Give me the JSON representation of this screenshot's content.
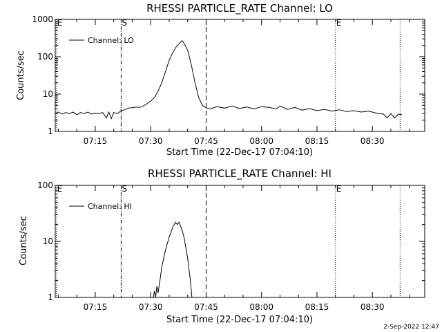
{
  "footer": {
    "timestamp": "2-Sep-2022 12:47"
  },
  "chart_data": [
    {
      "type": "line",
      "title": "RHESSI PARTICLE_RATE Channel: LO",
      "xlabel": "Start Time (22-Dec-17 07:04:10)",
      "ylabel": "Counts/sec",
      "y_scale": "log",
      "ylim": [
        1,
        1000
      ],
      "xlim": [
        "07:04:10",
        "08:44:10"
      ],
      "x_ticks": [
        "07:15",
        "07:30",
        "07:45",
        "08:00",
        "08:15",
        "08:30"
      ],
      "y_ticks": [
        "1",
        "10",
        "100",
        "1000"
      ],
      "legend": {
        "placement": "top-left",
        "entries": [
          "Channel: LO"
        ]
      },
      "markers": [
        {
          "label": "E",
          "time": "07:04:30",
          "style": "dotted"
        },
        {
          "label": "S",
          "time": "07:22:00",
          "style": "dash-dot"
        },
        {
          "label": "",
          "time": "07:45:00",
          "style": "dashed"
        },
        {
          "label": "E",
          "time": "08:20:00",
          "style": "dotted"
        },
        {
          "label": "",
          "time": "08:37:30",
          "style": "dotted"
        }
      ],
      "series": [
        {
          "name": "Channel: LO",
          "points": [
            [
              "07:04:10",
              3
            ],
            [
              "07:05:00",
              3.3
            ],
            [
              "07:06:00",
              2.9
            ],
            [
              "07:07:00",
              3.2
            ],
            [
              "07:08:00",
              3
            ],
            [
              "07:09:00",
              3.3
            ],
            [
              "07:10:00",
              2.8
            ],
            [
              "07:11:00",
              3.2
            ],
            [
              "07:12:00",
              3
            ],
            [
              "07:13:00",
              3.3
            ],
            [
              "07:14:00",
              2.9
            ],
            [
              "07:15:00",
              3.1
            ],
            [
              "07:16:00",
              3
            ],
            [
              "07:17:00",
              3.2
            ],
            [
              "07:18:00",
              2.3
            ],
            [
              "07:18:40",
              3.3
            ],
            [
              "07:19:20",
              2.2
            ],
            [
              "07:20:00",
              3.2
            ],
            [
              "07:21:00",
              3
            ],
            [
              "07:22:00",
              3.6
            ],
            [
              "07:23:00",
              3.8
            ],
            [
              "07:24:00",
              4.2
            ],
            [
              "07:25:00",
              4.3
            ],
            [
              "07:26:00",
              4.5
            ],
            [
              "07:27:00",
              4.4
            ],
            [
              "07:28:00",
              4.8
            ],
            [
              "07:29:00",
              5.5
            ],
            [
              "07:30:00",
              6.5
            ],
            [
              "07:31:00",
              8
            ],
            [
              "07:32:00",
              12
            ],
            [
              "07:33:00",
              20
            ],
            [
              "07:34:00",
              40
            ],
            [
              "07:35:00",
              80
            ],
            [
              "07:36:00",
              130
            ],
            [
              "07:37:00",
              190
            ],
            [
              "07:38:00",
              240
            ],
            [
              "07:38:30",
              270
            ],
            [
              "07:39:00",
              230
            ],
            [
              "07:40:00",
              150
            ],
            [
              "07:41:00",
              60
            ],
            [
              "07:42:00",
              20
            ],
            [
              "07:43:00",
              8
            ],
            [
              "07:44:00",
              5
            ],
            [
              "07:45:00",
              4.3
            ],
            [
              "07:46:00",
              4
            ],
            [
              "07:48:00",
              4.6
            ],
            [
              "07:50:00",
              4.2
            ],
            [
              "07:52:00",
              4.8
            ],
            [
              "07:54:00",
              4.1
            ],
            [
              "07:56:00",
              4.5
            ],
            [
              "07:58:00",
              4
            ],
            [
              "08:00:00",
              4.6
            ],
            [
              "08:02:00",
              4.4
            ],
            [
              "08:04:00",
              4
            ],
            [
              "08:05:00",
              4.8
            ],
            [
              "08:07:00",
              3.9
            ],
            [
              "08:09:00",
              4.4
            ],
            [
              "08:11:00",
              3.7
            ],
            [
              "08:13:00",
              4.1
            ],
            [
              "08:15:00",
              3.6
            ],
            [
              "08:17:00",
              3.9
            ],
            [
              "08:19:00",
              3.5
            ],
            [
              "08:21:00",
              3.8
            ],
            [
              "08:23:00",
              3.4
            ],
            [
              "08:25:00",
              3.6
            ],
            [
              "08:27:00",
              3.3
            ],
            [
              "08:29:00",
              3.5
            ],
            [
              "08:31:00",
              3.1
            ],
            [
              "08:33:00",
              2.9
            ],
            [
              "08:34:00",
              2.3
            ],
            [
              "08:35:00",
              3
            ],
            [
              "08:36:00",
              2.3
            ],
            [
              "08:37:00",
              2.9
            ],
            [
              "08:38:00",
              2.8
            ]
          ]
        }
      ]
    },
    {
      "type": "line",
      "title": "RHESSI PARTICLE_RATE Channel: HI",
      "xlabel": "Start Time (22-Dec-17 07:04:10)",
      "ylabel": "Counts/sec",
      "y_scale": "log",
      "ylim": [
        1,
        100
      ],
      "xlim": [
        "07:04:10",
        "08:44:10"
      ],
      "x_ticks": [
        "07:15",
        "07:30",
        "07:45",
        "08:00",
        "08:15",
        "08:30"
      ],
      "y_ticks": [
        "1",
        "10",
        "100"
      ],
      "legend": {
        "placement": "top-left",
        "entries": [
          "Channel: HI"
        ]
      },
      "markers": [
        {
          "label": "E",
          "time": "07:04:30",
          "style": "dotted"
        },
        {
          "label": "S",
          "time": "07:22:00",
          "style": "dash-dot"
        },
        {
          "label": "",
          "time": "07:45:00",
          "style": "dashed"
        },
        {
          "label": "E",
          "time": "08:20:00",
          "style": "dotted"
        },
        {
          "label": "",
          "time": "08:37:30",
          "style": "dotted"
        }
      ],
      "series": [
        {
          "name": "Channel: HI",
          "points": [
            [
              "07:30:40",
              1
            ],
            [
              "07:31:00",
              1.3
            ],
            [
              "07:31:20",
              1
            ],
            [
              "07:31:40",
              1.6
            ],
            [
              "07:32:00",
              1.2
            ],
            [
              "07:32:30",
              2
            ],
            [
              "07:33:00",
              3.5
            ],
            [
              "07:34:00",
              7
            ],
            [
              "07:35:00",
              12
            ],
            [
              "07:36:00",
              18
            ],
            [
              "07:36:40",
              22
            ],
            [
              "07:37:10",
              20
            ],
            [
              "07:37:40",
              22
            ],
            [
              "07:38:20",
              17
            ],
            [
              "07:39:00",
              12
            ],
            [
              "07:40:00",
              5
            ],
            [
              "07:40:40",
              2.2
            ],
            [
              "07:41:10",
              1
            ]
          ]
        }
      ]
    }
  ]
}
